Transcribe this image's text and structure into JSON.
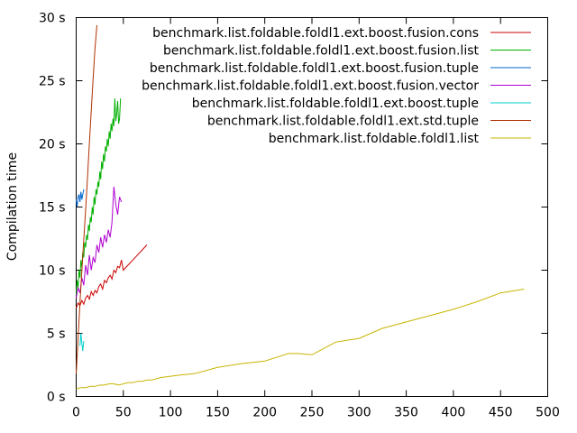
{
  "chart_data": {
    "type": "line",
    "title": "",
    "xlabel": "",
    "ylabel": "Compilation time",
    "xlim": [
      0,
      500
    ],
    "ylim": [
      0,
      30
    ],
    "x_ticks": [
      "0",
      "50",
      "100",
      "150",
      "200",
      "250",
      "300",
      "350",
      "400",
      "450",
      "500"
    ],
    "y_ticks": [
      "0 s",
      "5 s",
      "10 s",
      "15 s",
      "20 s",
      "25 s",
      "30 s"
    ],
    "grid": false,
    "legend_position": "top-right",
    "series": [
      {
        "name": "benchmark.list.foldable.foldl1.ext.boost.fusion.cons",
        "color": "#cc0000",
        "x": [
          0,
          2,
          4,
          6,
          8,
          10,
          12,
          14,
          16,
          18,
          20,
          22,
          24,
          26,
          28,
          30,
          32,
          34,
          36,
          38,
          40,
          42,
          44,
          46,
          48,
          50,
          55,
          60,
          65,
          70,
          75
        ],
        "y": [
          7.0,
          7.4,
          7.2,
          7.6,
          7.3,
          7.8,
          8.0,
          7.7,
          8.3,
          8.0,
          8.4,
          8.2,
          8.7,
          8.9,
          8.5,
          9.2,
          9.0,
          9.4,
          9.6,
          9.3,
          10.0,
          9.8,
          10.3,
          10.2,
          10.8,
          10.0,
          10.4,
          10.8,
          11.2,
          11.6,
          12.0
        ]
      },
      {
        "name": "benchmark.list.foldable.foldl1.ext.boost.fusion.list",
        "color": "#00b000",
        "x": [
          0,
          1,
          2,
          3,
          4,
          5,
          6,
          7,
          8,
          9,
          10,
          11,
          12,
          13,
          14,
          15,
          16,
          17,
          18,
          19,
          20,
          21,
          22,
          23,
          24,
          25,
          26,
          27,
          28,
          29,
          30,
          31,
          32,
          33,
          34,
          35,
          36,
          37,
          38,
          39,
          40,
          41,
          42,
          43,
          44,
          45,
          46,
          47
        ],
        "y": [
          8.0,
          9.2,
          8.6,
          10.0,
          9.4,
          10.8,
          10.2,
          11.4,
          11.0,
          12.2,
          11.8,
          12.8,
          12.4,
          13.6,
          13.1,
          14.2,
          13.8,
          15.0,
          14.4,
          15.8,
          15.2,
          16.4,
          16.0,
          17.0,
          16.6,
          17.8,
          17.2,
          18.6,
          18.0,
          19.2,
          18.6,
          19.8,
          19.4,
          20.4,
          19.8,
          21.0,
          20.4,
          21.6,
          21.0,
          22.0,
          21.4,
          23.6,
          21.8,
          22.4,
          23.4,
          21.6,
          22.0,
          23.6
        ]
      },
      {
        "name": "benchmark.list.foldable.foldl1.ext.boost.fusion.tuple",
        "color": "#0066cc",
        "x": [
          0,
          1,
          2,
          3,
          4,
          5,
          6,
          7,
          8
        ],
        "y": [
          15.6,
          15.0,
          15.8,
          16.0,
          15.4,
          16.2,
          15.6,
          16.0,
          16.4
        ]
      },
      {
        "name": "benchmark.list.foldable.foldl1.ext.boost.fusion.vector",
        "color": "#b000d0",
        "x": [
          0,
          2,
          4,
          6,
          8,
          10,
          12,
          14,
          16,
          18,
          20,
          22,
          24,
          26,
          28,
          30,
          32,
          34,
          36,
          38,
          40,
          42,
          44,
          46,
          48
        ],
        "y": [
          7.8,
          8.6,
          8.2,
          9.4,
          8.8,
          10.4,
          9.6,
          11.2,
          10.0,
          11.0,
          10.6,
          12.0,
          11.4,
          12.6,
          11.8,
          12.8,
          12.2,
          13.2,
          12.6,
          13.8,
          16.6,
          15.2,
          14.4,
          15.8,
          15.4
        ]
      },
      {
        "name": "benchmark.list.foldable.foldl1.ext.boost.tuple",
        "color": "#00cccc",
        "x": [
          4,
          5,
          6,
          7,
          8
        ],
        "y": [
          4.0,
          5.0,
          4.2,
          3.6,
          4.4
        ]
      },
      {
        "name": "benchmark.list.foldable.foldl1.ext.std.tuple",
        "color": "#b03000",
        "x": [
          0,
          2,
          4,
          6,
          8,
          10,
          12,
          14,
          16,
          18,
          20,
          22
        ],
        "y": [
          1.8,
          4.6,
          7.4,
          10.0,
          12.4,
          14.8,
          17.4,
          20.0,
          22.6,
          25.2,
          27.6,
          29.4
        ]
      },
      {
        "name": "benchmark.list.foldable.foldl1.list",
        "color": "#c8b400",
        "x": [
          0,
          5,
          10,
          15,
          20,
          25,
          30,
          35,
          40,
          45,
          50,
          55,
          60,
          65,
          70,
          75,
          80,
          90,
          100,
          110,
          125,
          150,
          175,
          200,
          225,
          235,
          250,
          275,
          300,
          325,
          350,
          375,
          400,
          425,
          450,
          475
        ],
        "y": [
          0.6,
          0.7,
          0.7,
          0.8,
          0.8,
          0.9,
          0.9,
          1.0,
          1.0,
          0.9,
          1.0,
          1.1,
          1.1,
          1.2,
          1.2,
          1.3,
          1.3,
          1.5,
          1.6,
          1.7,
          1.8,
          2.3,
          2.6,
          2.8,
          3.4,
          3.4,
          3.3,
          4.3,
          4.6,
          5.4,
          5.9,
          6.4,
          6.9,
          7.5,
          8.2,
          8.5
        ]
      }
    ]
  }
}
